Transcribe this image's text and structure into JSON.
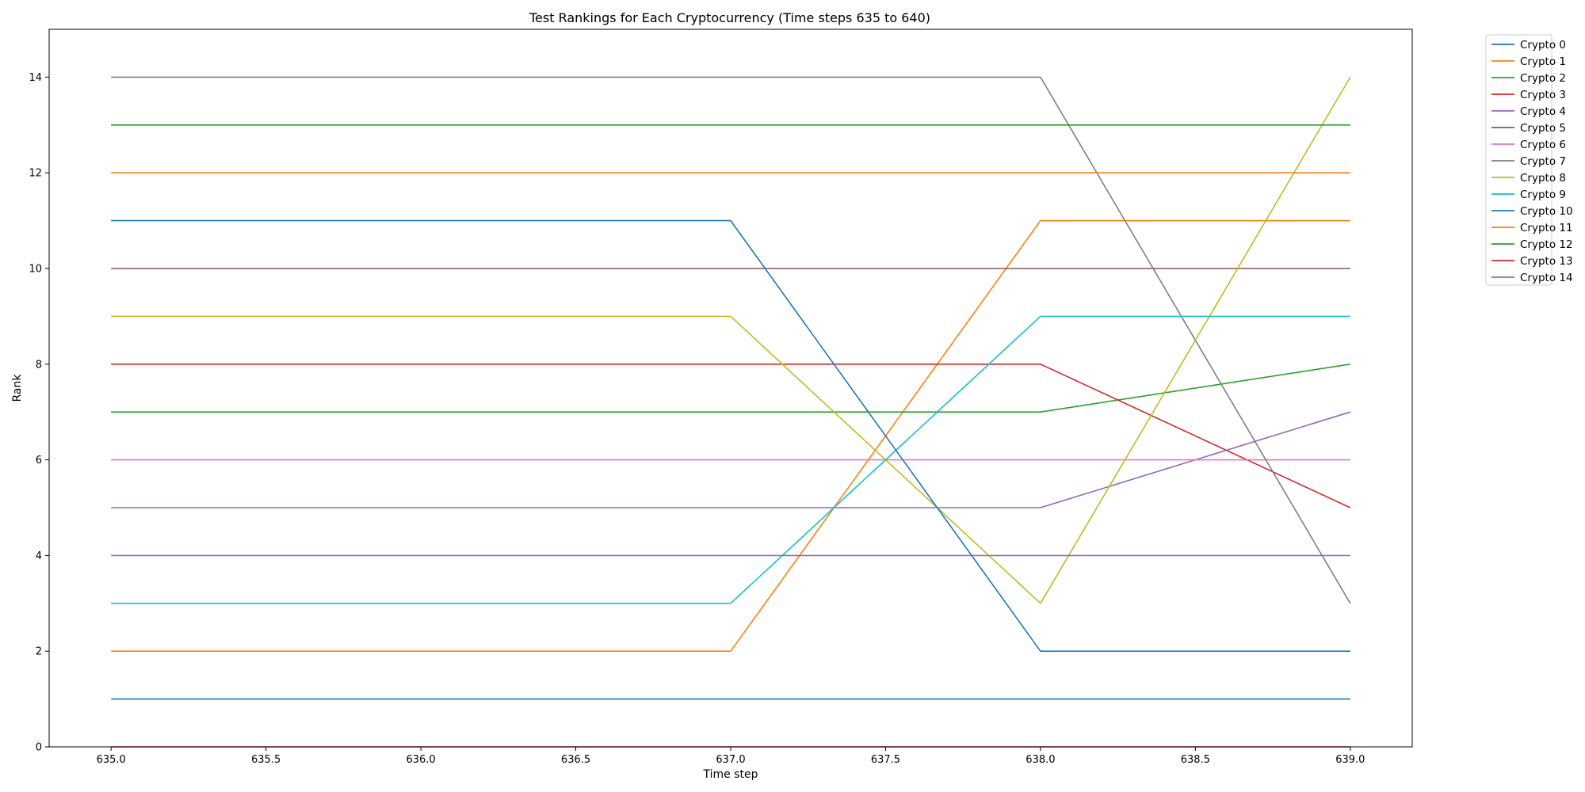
{
  "chart_data": {
    "type": "line",
    "title": "Test Rankings for Each Cryptocurrency (Time steps 635 to 640)",
    "xlabel": "Time step",
    "ylabel": "Rank",
    "x": [
      635,
      636,
      637,
      638,
      639
    ],
    "xlim": [
      634.8,
      639.2
    ],
    "ylim": [
      0,
      15
    ],
    "x_ticks": [
      "635.0",
      "635.5",
      "636.0",
      "636.5",
      "637.0",
      "637.5",
      "638.0",
      "638.5",
      "639.0"
    ],
    "y_ticks": [
      "0",
      "2",
      "4",
      "6",
      "8",
      "10",
      "12",
      "14"
    ],
    "grid": false,
    "legend_position": "outside-top-right",
    "series": [
      {
        "name": "Crypto 0",
        "color": "#1f77b4",
        "values": [
          1,
          1,
          1,
          1,
          1
        ]
      },
      {
        "name": "Crypto 1",
        "color": "#ff7f0e",
        "values": [
          2,
          2,
          2,
          11,
          11
        ]
      },
      {
        "name": "Crypto 2",
        "color": "#2ca02c",
        "values": [
          7,
          7,
          7,
          7,
          8
        ]
      },
      {
        "name": "Crypto 3",
        "color": "#d62728",
        "values": [
          8,
          8,
          8,
          8,
          5
        ]
      },
      {
        "name": "Crypto 4",
        "color": "#9467bd",
        "values": [
          5,
          5,
          5,
          5,
          7
        ]
      },
      {
        "name": "Crypto 5",
        "color": "#8c564b",
        "values": [
          10,
          10,
          10,
          10,
          10
        ]
      },
      {
        "name": "Crypto 6",
        "color": "#e377c2",
        "values": [
          6,
          6,
          6,
          6,
          6
        ]
      },
      {
        "name": "Crypto 7",
        "color": "#7f7f7f",
        "values": [
          14,
          14,
          14,
          14,
          3
        ]
      },
      {
        "name": "Crypto 8",
        "color": "#bcbd22",
        "values": [
          9,
          9,
          9,
          3,
          14
        ]
      },
      {
        "name": "Crypto 9",
        "color": "#17becf",
        "values": [
          3,
          3,
          3,
          9,
          9
        ]
      },
      {
        "name": "Crypto 10",
        "color": "#1f77b4",
        "values": [
          11,
          11,
          11,
          2,
          2
        ]
      },
      {
        "name": "Crypto 11",
        "color": "#ff7f0e",
        "values": [
          12,
          12,
          12,
          12,
          12
        ]
      },
      {
        "name": "Crypto 12",
        "color": "#2ca02c",
        "values": [
          13,
          13,
          13,
          13,
          13
        ]
      },
      {
        "name": "Crypto 13",
        "color": "#d62728",
        "values": [
          0,
          0,
          0,
          0,
          0
        ]
      },
      {
        "name": "Crypto 14",
        "color": "#9467bd",
        "values": [
          4,
          4,
          4,
          4,
          4
        ]
      }
    ]
  }
}
